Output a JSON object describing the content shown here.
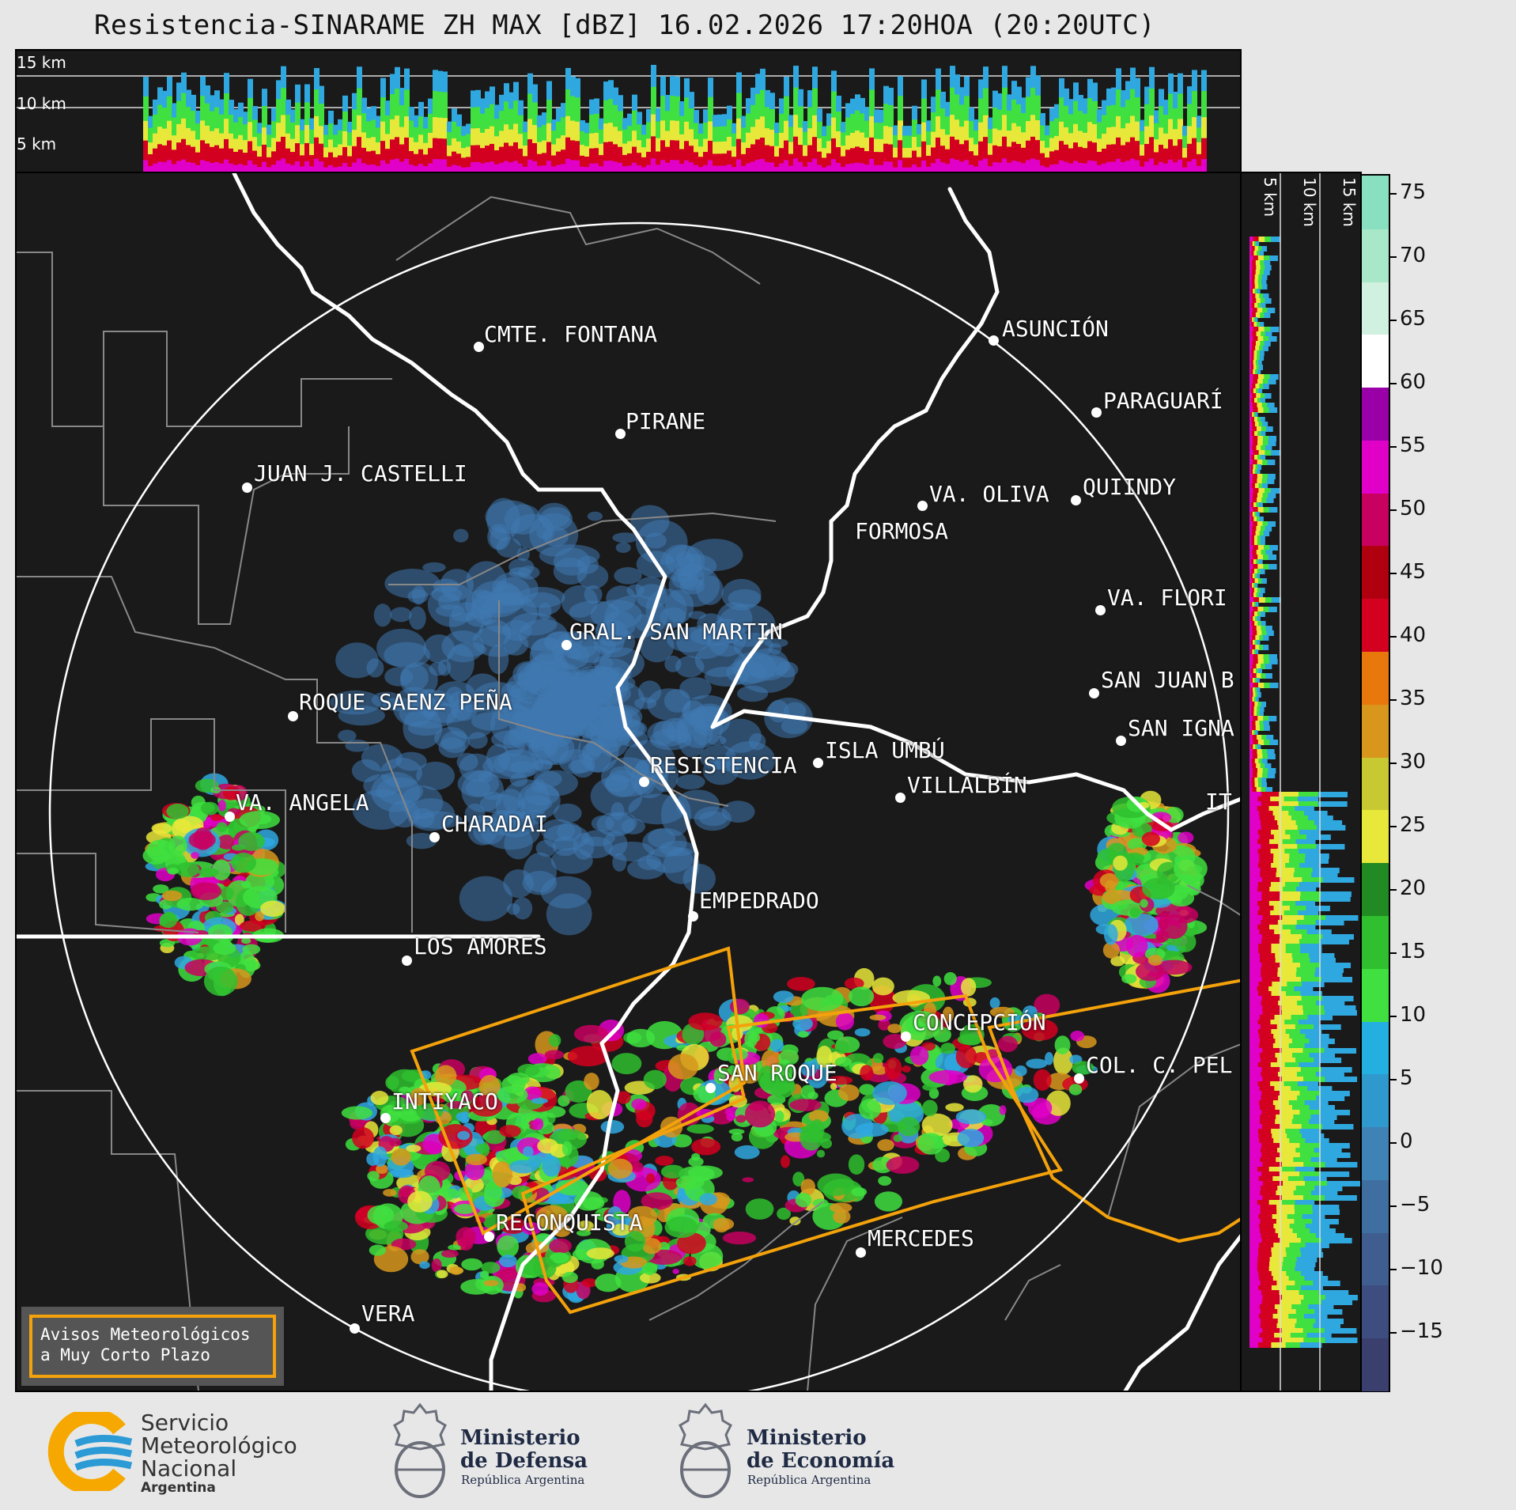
{
  "title": "Resistencia-SINARAME ZH MAX [dBZ] 16.02.2026 17:20HOA (20:20UTC)",
  "top_profile": {
    "levels": [
      "15 km",
      "10 km",
      "5 km"
    ]
  },
  "side_profile": {
    "levels": [
      "5 km",
      "10 km",
      "15 km"
    ]
  },
  "colorbar": {
    "ticks": [
      "75",
      "70",
      "65",
      "60",
      "55",
      "50",
      "45",
      "40",
      "35",
      "30",
      "25",
      "20",
      "15",
      "10",
      "5",
      "0",
      "−5",
      "−10",
      "−15"
    ],
    "colors": [
      "#3a3f6e",
      "#3d4d80",
      "#3f5d8e",
      "#3f6fa0",
      "#3f82b5",
      "#2f98cc",
      "#23b0e0",
      "#3fe03f",
      "#2fbf2f",
      "#228a22",
      "#e8e83a",
      "#c8c832",
      "#d8961c",
      "#e8780c",
      "#d40020",
      "#b00010",
      "#c80060",
      "#e000c8",
      "#9a00a8",
      "#ffffff",
      "#d0f0e0",
      "#a8e8c8",
      "#88e0c0"
    ]
  },
  "cities": [
    {
      "name": "CMTE. FONTANA"
    },
    {
      "name": "ASUNCIÓN"
    },
    {
      "name": "PARAGUARÍ"
    },
    {
      "name": "PIRANE"
    },
    {
      "name": "JUAN J. CASTELLI"
    },
    {
      "name": "VA. OLIVA"
    },
    {
      "name": "QUIINDY"
    },
    {
      "name": "FORMOSA"
    },
    {
      "name": "VA. FLORI"
    },
    {
      "name": "GRAL. SAN MARTIN"
    },
    {
      "name": "SAN JUAN B"
    },
    {
      "name": "ROQUE SAENZ PEÑA"
    },
    {
      "name": "SAN IGNA"
    },
    {
      "name": "ISLA UMBÚ"
    },
    {
      "name": "VILLALBÍN"
    },
    {
      "name": "RESISTENCIA"
    },
    {
      "name": "VA. ANGELA"
    },
    {
      "name": "CHARADAI"
    },
    {
      "name": "IT"
    },
    {
      "name": "EMPEDRADO"
    },
    {
      "name": "LOS AMORES"
    },
    {
      "name": "CONCEPCIÓN"
    },
    {
      "name": "SAN ROQUE"
    },
    {
      "name": "COL. C. PEL"
    },
    {
      "name": "INTIYACO"
    },
    {
      "name": "RECONQUISTA"
    },
    {
      "name": "MERCEDES"
    },
    {
      "name": "VERA"
    }
  ],
  "alerts": {
    "line1": "Avisos Meteorológicos",
    "line2": "a Muy Corto Plazo"
  },
  "logos": {
    "smn": {
      "line1": "Servicio",
      "line2": "Meteorológico",
      "line3": "Nacional",
      "line4": "Argentina"
    },
    "defensa": {
      "line1": "Ministerio",
      "line2": "de Defensa",
      "line3": "República Argentina"
    },
    "economia": {
      "line1": "Ministerio",
      "line2": "de Economía",
      "line3": "República Argentina"
    }
  }
}
